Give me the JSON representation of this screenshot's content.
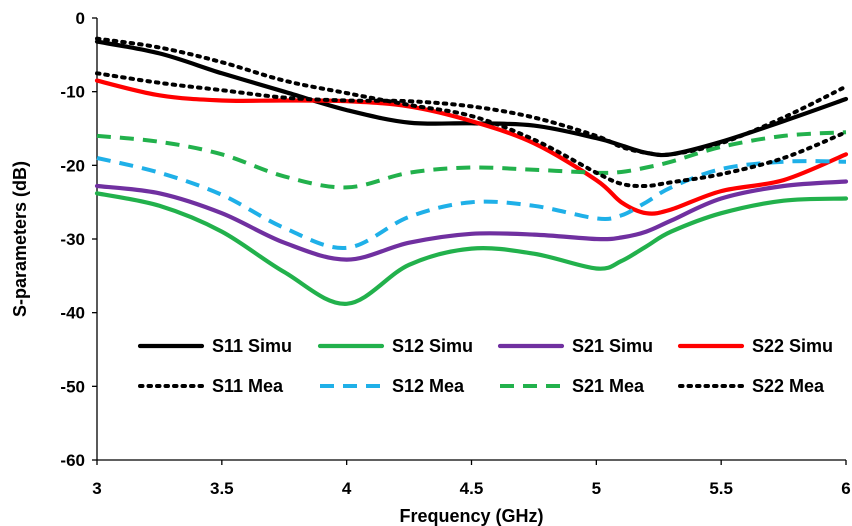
{
  "chart_data": {
    "type": "line",
    "xlabel": "Frequency (GHz)",
    "ylabel": "S-parameters (dB)",
    "xlim": [
      3,
      6
    ],
    "ylim": [
      -60,
      0
    ],
    "x_ticks": [
      "3",
      "3.5",
      "4",
      "4.5",
      "5",
      "5.5",
      "6"
    ],
    "y_ticks": [
      "0",
      "-10",
      "-20",
      "-30",
      "-40",
      "-50",
      "-60"
    ],
    "grid": false,
    "legend_position": "inside-bottom",
    "x": [
      3.0,
      3.25,
      3.5,
      3.75,
      4.0,
      4.25,
      4.5,
      4.75,
      5.0,
      5.1,
      5.2,
      5.3,
      5.5,
      5.75,
      6.0
    ],
    "series": [
      {
        "name": "S11 Simu",
        "color": "#000000",
        "style": "solid",
        "values": [
          -3.2,
          -4.8,
          -7.5,
          -10.0,
          -12.5,
          -14.2,
          -14.3,
          -14.6,
          -16.3,
          -17.3,
          -18.3,
          -18.5,
          -16.8,
          -14.0,
          -11.0
        ]
      },
      {
        "name": "S12 Simu",
        "color": "#22b14c",
        "style": "solid",
        "values": [
          -23.8,
          -25.5,
          -29.0,
          -34.5,
          -38.8,
          -33.5,
          -31.3,
          -32.0,
          -34.0,
          -33.0,
          -31.0,
          -29.0,
          -26.5,
          -24.8,
          -24.5
        ]
      },
      {
        "name": "S21 Simu",
        "color": "#7030a0",
        "style": "solid",
        "values": [
          -22.8,
          -23.8,
          -26.5,
          -30.5,
          -32.8,
          -30.5,
          -29.3,
          -29.4,
          -30.0,
          -29.8,
          -29.0,
          -27.5,
          -24.5,
          -22.8,
          -22.2
        ]
      },
      {
        "name": "S22 Simu",
        "color": "#ff0000",
        "style": "solid",
        "values": [
          -8.5,
          -10.5,
          -11.2,
          -11.2,
          -11.3,
          -12.0,
          -14.0,
          -17.0,
          -22.0,
          -25.0,
          -26.5,
          -26.0,
          -23.5,
          -22.0,
          -18.5
        ]
      },
      {
        "name": "S11 Mea",
        "color": "#000000",
        "style": "dotted",
        "values": [
          -7.5,
          -8.8,
          -9.8,
          -10.8,
          -11.2,
          -11.3,
          -12.0,
          -13.5,
          -16.0,
          -17.5,
          -18.3,
          -18.5,
          -17.0,
          -13.5,
          -9.3
        ]
      },
      {
        "name": "S12 Mea",
        "color": "#1fb0e8",
        "style": "dashed",
        "values": [
          -19.0,
          -21.0,
          -24.0,
          -28.5,
          -31.2,
          -27.0,
          -25.0,
          -25.5,
          -27.2,
          -26.8,
          -25.0,
          -23.0,
          -20.5,
          -19.5,
          -19.5
        ]
      },
      {
        "name": "S21 Mea",
        "color": "#22b14c",
        "style": "dashed",
        "values": [
          -16.0,
          -16.8,
          -18.5,
          -21.5,
          -23.0,
          -21.0,
          -20.3,
          -20.6,
          -21.0,
          -20.9,
          -20.3,
          -19.5,
          -17.5,
          -16.0,
          -15.5
        ]
      },
      {
        "name": "S22 Mea",
        "color": "#000000",
        "style": "dotted",
        "values": [
          -2.8,
          -4.0,
          -6.0,
          -8.5,
          -10.2,
          -11.8,
          -13.3,
          -16.5,
          -21.0,
          -22.5,
          -22.8,
          -22.3,
          -21.2,
          -19.0,
          -15.5
        ]
      }
    ]
  }
}
